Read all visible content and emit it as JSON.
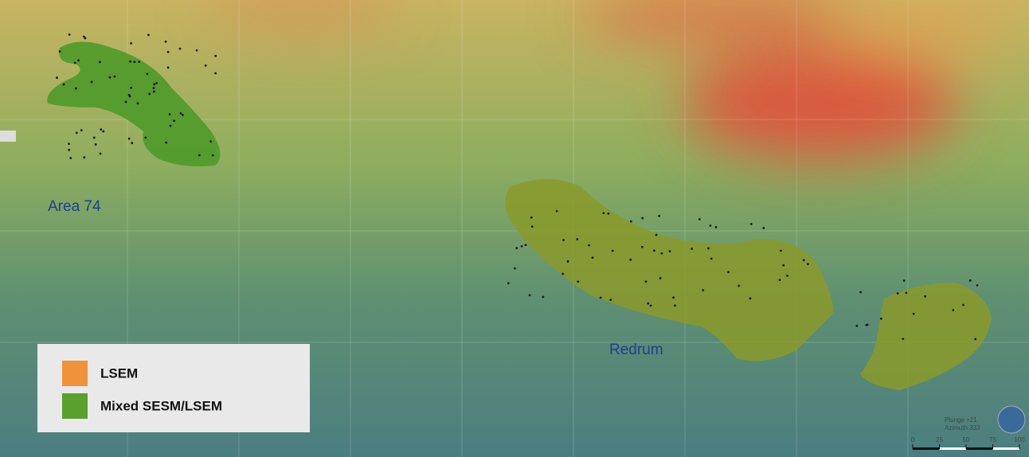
{
  "labels": [
    "Area 74",
    "Redrum"
  ],
  "legend": {
    "items": [
      {
        "label": "LSEM",
        "color": "#f0923a"
      },
      {
        "label": "Mixed SESM/LSEM",
        "color": "#5aa02c"
      }
    ]
  },
  "orientation": {
    "plunge": "Plunge +21",
    "azimuth": "Azimuth 333"
  },
  "scale_bar": {
    "ticks": [
      0,
      25,
      50,
      75,
      100
    ]
  }
}
